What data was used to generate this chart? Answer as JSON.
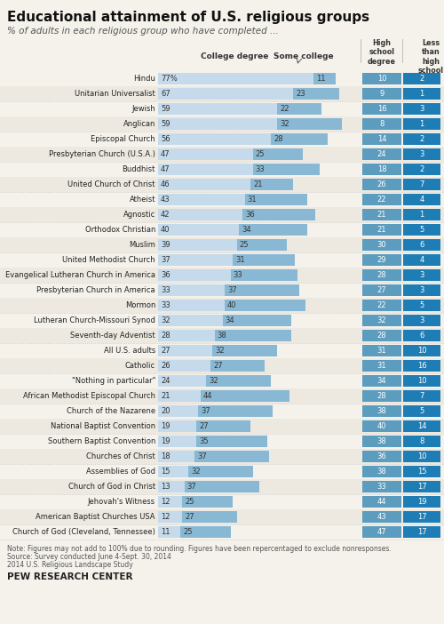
{
  "title": "Educational attainment of U.S. religious groups",
  "subtitle": "% of adults in each religious group who have completed ...",
  "groups": [
    {
      "name": "Hindu",
      "college": 77,
      "some_college": 11,
      "hs": 10,
      "less": 2
    },
    {
      "name": "Unitarian Universalist",
      "college": 67,
      "some_college": 23,
      "hs": 9,
      "less": 1
    },
    {
      "name": "Jewish",
      "college": 59,
      "some_college": 22,
      "hs": 16,
      "less": 3
    },
    {
      "name": "Anglican",
      "college": 59,
      "some_college": 32,
      "hs": 8,
      "less": 1
    },
    {
      "name": "Episcopal Church",
      "college": 56,
      "some_college": 28,
      "hs": 14,
      "less": 2
    },
    {
      "name": "Presbyterian Church (U.S.A.)",
      "college": 47,
      "some_college": 25,
      "hs": 24,
      "less": 3
    },
    {
      "name": "Buddhist",
      "college": 47,
      "some_college": 33,
      "hs": 18,
      "less": 2
    },
    {
      "name": "United Church of Christ",
      "college": 46,
      "some_college": 21,
      "hs": 26,
      "less": 7
    },
    {
      "name": "Atheist",
      "college": 43,
      "some_college": 31,
      "hs": 22,
      "less": 4
    },
    {
      "name": "Agnostic",
      "college": 42,
      "some_college": 36,
      "hs": 21,
      "less": 1
    },
    {
      "name": "Orthodox Christian",
      "college": 40,
      "some_college": 34,
      "hs": 21,
      "less": 5
    },
    {
      "name": "Muslim",
      "college": 39,
      "some_college": 25,
      "hs": 30,
      "less": 6
    },
    {
      "name": "United Methodist Church",
      "college": 37,
      "some_college": 31,
      "hs": 29,
      "less": 4
    },
    {
      "name": "Evangelical Lutheran Church in America",
      "college": 36,
      "some_college": 33,
      "hs": 28,
      "less": 3
    },
    {
      "name": "Presbyterian Church in America",
      "college": 33,
      "some_college": 37,
      "hs": 27,
      "less": 3
    },
    {
      "name": "Mormon",
      "college": 33,
      "some_college": 40,
      "hs": 22,
      "less": 5
    },
    {
      "name": "Lutheran Church-Missouri Synod",
      "college": 32,
      "some_college": 34,
      "hs": 32,
      "less": 3
    },
    {
      "name": "Seventh-day Adventist",
      "college": 28,
      "some_college": 38,
      "hs": 28,
      "less": 6
    },
    {
      "name": "All U.S. adults",
      "college": 27,
      "some_college": 32,
      "hs": 31,
      "less": 10
    },
    {
      "name": "Catholic",
      "college": 26,
      "some_college": 27,
      "hs": 31,
      "less": 16
    },
    {
      "name": "\"Nothing in particular\"",
      "college": 24,
      "some_college": 32,
      "hs": 34,
      "less": 10
    },
    {
      "name": "African Methodist Episcopal Church",
      "college": 21,
      "some_college": 44,
      "hs": 28,
      "less": 7
    },
    {
      "name": "Church of the Nazarene",
      "college": 20,
      "some_college": 37,
      "hs": 38,
      "less": 5
    },
    {
      "name": "National Baptist Convention",
      "college": 19,
      "some_college": 27,
      "hs": 40,
      "less": 14
    },
    {
      "name": "Southern Baptist Convention",
      "college": 19,
      "some_college": 35,
      "hs": 38,
      "less": 8
    },
    {
      "name": "Churches of Christ",
      "college": 18,
      "some_college": 37,
      "hs": 36,
      "less": 10
    },
    {
      "name": "Assemblies of God",
      "college": 15,
      "some_college": 32,
      "hs": 38,
      "less": 15
    },
    {
      "name": "Church of God in Christ",
      "college": 13,
      "some_college": 37,
      "hs": 33,
      "less": 17
    },
    {
      "name": "Jehovah's Witness",
      "college": 12,
      "some_college": 25,
      "hs": 44,
      "less": 19
    },
    {
      "name": "American Baptist Churches USA",
      "college": 12,
      "some_college": 27,
      "hs": 43,
      "less": 17
    },
    {
      "name": "Church of God (Cleveland, Tennessee)",
      "college": 11,
      "some_college": 25,
      "hs": 47,
      "less": 17
    }
  ],
  "color_college": "#c5daea",
  "color_some": "#89b8d4",
  "color_hs": "#5b9cbf",
  "color_less": "#1f7db5",
  "bg_color": "#f5f2ec",
  "row_alt_color": "#ede9e1",
  "note": "Note: Figures may not add to 100% due to rounding. Figures have been repercentaged to exclude nonresponses.\nSource: Survey conducted June 4-Sept. 30, 2014\n2014 U.S. Religious Landscape Study",
  "footer": "PEW RESEARCH CENTER"
}
